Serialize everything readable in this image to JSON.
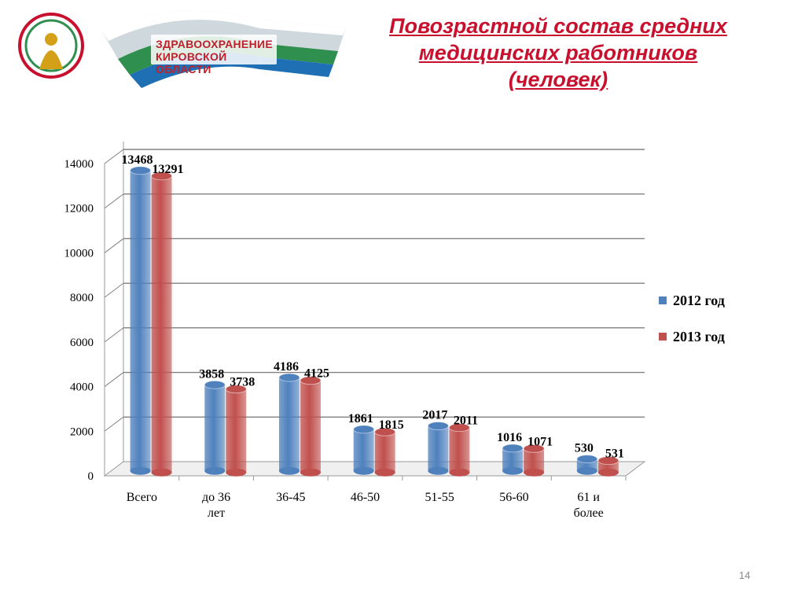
{
  "header": {
    "logo_line1": "ЗДРАВООХРАНЕНИЕ",
    "logo_line2": "КИРОВСКОЙ ОБЛАСТИ",
    "title_line1": "Повозрастной состав средних",
    "title_line2": "медицинских работников",
    "title_line3": "(человек)"
  },
  "page_number": "14",
  "colors": {
    "series_2012": "#4f81bd",
    "series_2013": "#c0504d",
    "title": "#c8102e"
  },
  "chart_data": {
    "type": "bar",
    "categories": [
      "Всего",
      "до 36 лет",
      "36-45",
      "46-50",
      "51-55",
      "56-60",
      "61 и более"
    ],
    "series": [
      {
        "name": "2012 год",
        "values": [
          13468,
          3858,
          4186,
          1861,
          2017,
          1016,
          530
        ]
      },
      {
        "name": "2013 год",
        "values": [
          13291,
          3738,
          4125,
          1815,
          2011,
          1071,
          531
        ]
      }
    ],
    "yticks": [
      0,
      2000,
      4000,
      6000,
      8000,
      10000,
      12000,
      14000
    ],
    "ylim": [
      0,
      14000
    ],
    "grid": true,
    "legend_position": "right"
  }
}
